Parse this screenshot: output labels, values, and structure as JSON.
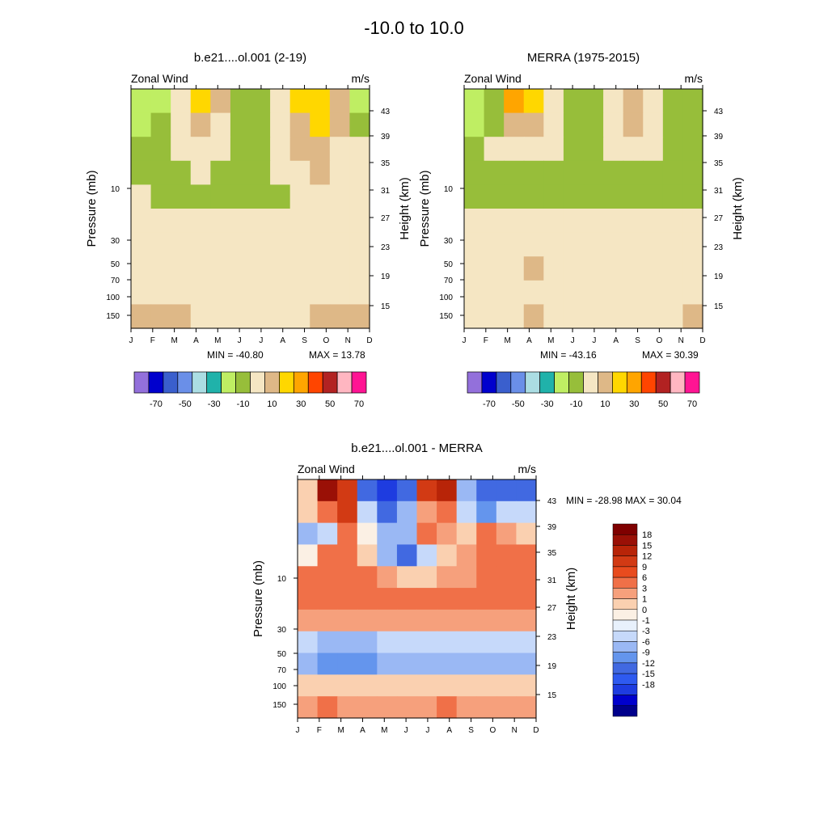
{
  "figure": {
    "title": "-10.0 to  10.0"
  },
  "chart_data": [
    {
      "type": "heatmap",
      "title": "b.e21....ol.001 (2-19)",
      "left_string": "Zonal Wind",
      "right_string": "m/s",
      "x_categories": [
        "J",
        "F",
        "M",
        "A",
        "M",
        "J",
        "J",
        "A",
        "S",
        "O",
        "N",
        "D"
      ],
      "y_pressure_ticks": [
        "10",
        "30",
        "50",
        "70",
        "100",
        "150"
      ],
      "y_height_ticks": [
        "43",
        "39",
        "35",
        "31",
        "27",
        "23",
        "19",
        "15"
      ],
      "ylabel_left": "Pressure (mb)",
      "ylabel_right": "Height (km)",
      "ylim_mb": [
        200,
        1
      ],
      "min_label": "MIN = -40.80",
      "max_label": "MAX =  13.78",
      "levels": [
        -80,
        -70,
        -60,
        -50,
        -40,
        -30,
        -20,
        -10,
        0,
        10,
        20,
        30,
        40,
        50,
        60,
        70
      ],
      "colors": [
        "#9370DB",
        "#0000CD",
        "#3A5FCD",
        "#6A8FE8",
        "#ABDDE3",
        "#20B2AA",
        "#BFEE63",
        "#97BE3A",
        "#F5E6C3",
        "#DEB887",
        "#FFD700",
        "#FFA500",
        "#FF4500",
        "#B22222",
        "#FFB6C1",
        "#FF1493"
      ],
      "colorbar_labels": [
        "-70",
        "-50",
        "-30",
        "-10",
        "10",
        "30",
        "50",
        "70"
      ],
      "z_rows_ms": [
        [
          -28,
          -22,
          -2,
          12,
          2,
          -14,
          -20,
          -4,
          10,
          12,
          2,
          -22
        ],
        [
          -26,
          -14,
          -4,
          6,
          -4,
          -12,
          -18,
          -8,
          2,
          12,
          4,
          -12
        ],
        [
          -18,
          -12,
          -10,
          -2,
          -8,
          -12,
          -12,
          -6,
          0,
          6,
          -2,
          -8
        ],
        [
          -14,
          -12,
          -12,
          -10,
          -12,
          -14,
          -14,
          -10,
          -6,
          0,
          -6,
          -6
        ],
        [
          -10,
          -12,
          -12,
          -12,
          -12,
          -14,
          -12,
          -12,
          -10,
          -8,
          -8,
          -8
        ],
        [
          -6,
          -8,
          -8,
          -8,
          -8,
          -8,
          -8,
          -8,
          -8,
          -6,
          -6,
          -6
        ],
        [
          -6,
          -6,
          -6,
          -6,
          -6,
          -6,
          -6,
          -6,
          -6,
          -6,
          -6,
          -6
        ],
        [
          -8,
          -8,
          -8,
          -8,
          -8,
          -8,
          -8,
          -8,
          -8,
          -8,
          -8,
          -8
        ],
        [
          -2,
          -4,
          -6,
          -8,
          -8,
          -8,
          -8,
          -8,
          -8,
          -6,
          -4,
          -2
        ],
        [
          4,
          4,
          2,
          -2,
          -6,
          -8,
          -8,
          -6,
          -4,
          2,
          6,
          6
        ]
      ]
    },
    {
      "type": "heatmap",
      "title": "MERRA (1975-2015)",
      "left_string": "Zonal Wind",
      "right_string": "m/s",
      "x_categories": [
        "J",
        "F",
        "M",
        "A",
        "M",
        "J",
        "J",
        "A",
        "S",
        "O",
        "N",
        "D"
      ],
      "y_pressure_ticks": [
        "10",
        "30",
        "50",
        "70",
        "100",
        "150"
      ],
      "y_height_ticks": [
        "43",
        "39",
        "35",
        "31",
        "27",
        "23",
        "19",
        "15"
      ],
      "ylabel_left": "Pressure (mb)",
      "ylabel_right": "Height (km)",
      "ylim_mb": [
        200,
        1
      ],
      "min_label": "MIN = -43.16",
      "max_label": "MAX =  30.39",
      "levels": [
        -80,
        -70,
        -60,
        -50,
        -40,
        -30,
        -20,
        -10,
        0,
        10,
        20,
        30,
        40,
        50,
        60,
        70
      ],
      "colors": [
        "#9370DB",
        "#0000CD",
        "#3A5FCD",
        "#6A8FE8",
        "#ABDDE3",
        "#20B2AA",
        "#BFEE63",
        "#97BE3A",
        "#F5E6C3",
        "#DEB887",
        "#FFD700",
        "#FFA500",
        "#FF4500",
        "#B22222",
        "#FFB6C1",
        "#FF1493"
      ],
      "colorbar_labels": [
        "-70",
        "-50",
        "-30",
        "-10",
        "10",
        "30",
        "50",
        "70"
      ],
      "z_rows_ms": [
        [
          -30,
          -20,
          22,
          10,
          -6,
          -18,
          -14,
          -4,
          6,
          -8,
          -14,
          -18
        ],
        [
          -28,
          -20,
          6,
          8,
          -4,
          -12,
          -16,
          -6,
          2,
          -4,
          -12,
          -14
        ],
        [
          -20,
          -10,
          -10,
          -2,
          -8,
          -14,
          -14,
          -8,
          -2,
          -6,
          -12,
          -12
        ],
        [
          -14,
          -12,
          -12,
          -12,
          -12,
          -14,
          -14,
          -14,
          -12,
          -12,
          -12,
          -12
        ],
        [
          -12,
          -12,
          -14,
          -14,
          -14,
          -14,
          -14,
          -14,
          -14,
          -14,
          -14,
          -12
        ],
        [
          -6,
          -6,
          -6,
          -8,
          -8,
          -8,
          -8,
          -10,
          -10,
          -10,
          -10,
          -10
        ],
        [
          -6,
          -6,
          -4,
          -4,
          -6,
          -6,
          -6,
          -6,
          -6,
          -6,
          -6,
          -6
        ],
        [
          -8,
          -8,
          -6,
          2,
          -4,
          -8,
          -8,
          -8,
          -8,
          -8,
          -8,
          -8
        ],
        [
          -6,
          -6,
          -6,
          -6,
          -6,
          -8,
          -8,
          -8,
          -8,
          -8,
          -8,
          -6
        ],
        [
          -2,
          -4,
          -4,
          2,
          -6,
          -8,
          -8,
          -8,
          -8,
          -8,
          -2,
          4
        ]
      ]
    },
    {
      "type": "heatmap",
      "title": "b.e21....ol.001 - MERRA",
      "left_string": "Zonal Wind",
      "right_string": "m/s",
      "x_categories": [
        "J",
        "F",
        "M",
        "A",
        "M",
        "J",
        "J",
        "A",
        "S",
        "O",
        "N",
        "D"
      ],
      "y_pressure_ticks": [
        "10",
        "30",
        "50",
        "70",
        "100",
        "150"
      ],
      "y_height_ticks": [
        "43",
        "39",
        "35",
        "31",
        "27",
        "23",
        "19",
        "15"
      ],
      "ylabel_left": "Pressure (mb)",
      "ylabel_right": "Height (km)",
      "ylim_mb": [
        200,
        1
      ],
      "stats_label": "MIN = -28.98  MAX =  30.04",
      "levels": [
        -21,
        -18,
        -15,
        -12,
        -9,
        -6,
        -3,
        -1,
        0,
        1,
        3,
        6,
        9,
        12,
        15,
        18,
        21
      ],
      "colors": [
        "#00008B",
        "#0000CD",
        "#1E3CE0",
        "#2E5AF0",
        "#4169E1",
        "#6495ED",
        "#9AB8F4",
        "#C6D9FA",
        "#E8F1FC",
        "#FBF0E4",
        "#FAD0B0",
        "#F6A07C",
        "#F07048",
        "#E84B1E",
        "#D23A14",
        "#B82408",
        "#9A1006",
        "#7F0000"
      ],
      "colorbar_labels": [
        "18",
        "15",
        "12",
        "9",
        "6",
        "3",
        "1",
        "0",
        "-1",
        "-3",
        "-6",
        "-9",
        "-12",
        "-15",
        "-18"
      ],
      "z_rows_ms": [
        [
          2,
          20,
          14,
          -12,
          -18,
          -12,
          12,
          16,
          -6,
          -12,
          -10,
          -10
        ],
        [
          2,
          6,
          12,
          -2,
          -12,
          -4,
          4,
          8,
          -2,
          -8,
          -2,
          -2
        ],
        [
          -4,
          -2,
          8,
          0,
          -6,
          -6,
          8,
          4,
          2,
          8,
          4,
          2
        ],
        [
          0,
          6,
          6,
          2,
          -6,
          -10,
          -2,
          2,
          4,
          6,
          8,
          8
        ],
        [
          6,
          6,
          8,
          6,
          4,
          2,
          2,
          4,
          4,
          6,
          6,
          6
        ],
        [
          6,
          6,
          6,
          6,
          6,
          6,
          6,
          6,
          6,
          6,
          8,
          6
        ],
        [
          4,
          4,
          4,
          4,
          4,
          4,
          4,
          4,
          4,
          4,
          4,
          4
        ],
        [
          -3,
          -4,
          -4,
          -4,
          -3,
          -2,
          -2,
          -3,
          -3,
          -3,
          -3,
          -3
        ],
        [
          -6,
          -8,
          -8,
          -8,
          -5,
          -4,
          -4,
          -6,
          -6,
          -6,
          -4,
          -4
        ],
        [
          2,
          2,
          2,
          2,
          2,
          2,
          2,
          2,
          2,
          2,
          2,
          2
        ],
        [
          4,
          6,
          4,
          4,
          4,
          4,
          4,
          6,
          4,
          4,
          4,
          4
        ]
      ]
    }
  ]
}
